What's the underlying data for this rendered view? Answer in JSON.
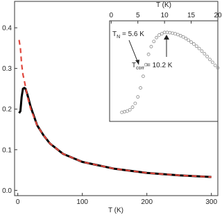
{
  "chart_data": [
    {
      "type": "line",
      "x_label": "T (K)",
      "x": [
        2,
        4,
        6,
        8,
        10,
        12,
        15,
        20,
        30,
        40,
        50,
        70,
        100,
        150,
        200,
        250,
        300
      ],
      "series": [
        {
          "color": "#000000",
          "dashed": false,
          "values": [
            0.19,
            0.195,
            0.23,
            0.25,
            0.252,
            0.25,
            0.235,
            0.205,
            0.16,
            0.135,
            0.115,
            0.09,
            0.07,
            0.053,
            0.043,
            0.037,
            0.033
          ]
        },
        {
          "color": "#e0463c",
          "dashed": true,
          "values": [
            0.37,
            0.35,
            0.31,
            0.285,
            0.27,
            0.255,
            0.23,
            0.2,
            0.16,
            0.135,
            0.115,
            0.09,
            0.07,
            0.053,
            0.043,
            0.037,
            0.033
          ]
        }
      ],
      "xlim": [
        -5,
        310
      ],
      "xticks": [
        0,
        100,
        200,
        300
      ],
      "ylim": [
        -0.013,
        0.465
      ],
      "yticks": [
        {
          "value": 0,
          "label": "0.0"
        },
        0.1,
        0.2,
        0.3,
        0.4
      ]
    },
    {
      "type": "scatter",
      "x_label": "T (K)",
      "x": [
        2,
        2.5,
        3,
        3.5,
        4,
        4.5,
        5,
        5.5,
        6,
        6.5,
        7,
        7.5,
        8,
        8.5,
        9,
        9.5,
        10,
        10.5,
        11,
        11.5,
        12,
        12.5,
        13,
        13.5,
        14,
        14.5,
        15,
        15.5,
        16,
        16.5,
        17,
        17.5,
        18,
        18.5,
        19,
        19.5,
        20
      ],
      "series": [
        {
          "color": "#888888",
          "values": [
            0.19,
            0.1905,
            0.191,
            0.192,
            0.194,
            0.197,
            0.202,
            0.209,
            0.218,
            0.227,
            0.235,
            0.241,
            0.245,
            0.248,
            0.25,
            0.251,
            0.252,
            0.252,
            0.2518,
            0.2514,
            0.251,
            0.2503,
            0.2495,
            0.2485,
            0.2473,
            0.246,
            0.2445,
            0.243,
            0.2413,
            0.2395,
            0.2375,
            0.2355,
            0.2333,
            0.231,
            0.2288,
            0.2265,
            0.2245
          ]
        }
      ],
      "xlim": [
        -0.3,
        20
      ],
      "xticks": [
        0,
        5,
        10,
        15,
        20
      ],
      "ylim": [
        0.183,
        0.261
      ],
      "annotations": [
        {
          "text": "T",
          "sub": "N",
          "suffix": " = 5.6 K"
        },
        {
          "text": "T",
          "sub": "corr",
          "suffix": " = 10.2 K"
        }
      ]
    }
  ]
}
